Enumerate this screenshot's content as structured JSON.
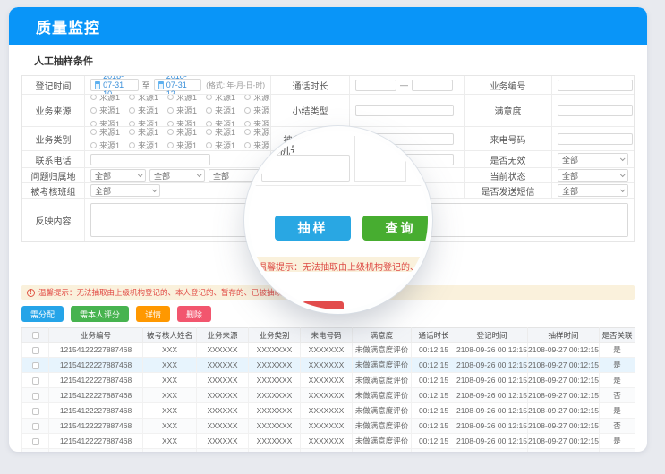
{
  "header": {
    "title": "质量监控"
  },
  "section": {
    "title": "人工抽样条件"
  },
  "form": {
    "registration_time": {
      "label": "登记时间",
      "from": "2018-07-31 10",
      "to": "2018-07-31 12",
      "separator": "至",
      "format_hint": "(格式: 年-月-日-时)"
    },
    "business_source": {
      "label": "业务来源",
      "option_label": "来源1",
      "rows": 3,
      "cols": 5
    },
    "business_category": {
      "label": "业务类别",
      "option_label": "来源1",
      "rows": 2,
      "cols": 5
    },
    "contact_phone": {
      "label": "联系电话"
    },
    "problem_region": {
      "label": "问题归属地",
      "selects": [
        "全部",
        "全部",
        "全部"
      ]
    },
    "assessed_team": {
      "label": "被考核班组",
      "select": "全部"
    },
    "feedback_content": {
      "label": "反映内容"
    },
    "call_duration": {
      "label": "通话时长",
      "separator": "—"
    },
    "summary_type": {
      "label": "小结类型"
    },
    "assessed_person": {
      "label": "被考核人姓名"
    },
    "switchboard_no": {
      "label": "总机号码"
    },
    "business_no": {
      "label": "业务编号"
    },
    "satisfaction": {
      "label": "满意度"
    },
    "caller_no": {
      "label": "来电号码"
    },
    "is_invalid": {
      "label": "是否无效",
      "select": "全部"
    },
    "current_status": {
      "label": "当前状态",
      "select": "全部"
    },
    "send_sms": {
      "label": "是否发送短信",
      "select": "全部"
    }
  },
  "lens": {
    "sample_label": "抽样",
    "query_label": "查询",
    "peek_label": "总机号码",
    "sample_color": "#29a7e3",
    "query_color": "#47ad30"
  },
  "warning": {
    "text": "温馨提示：无法抽取由上级机构登记的、本人登记的、暂存的、已被抽取未评分的业务记录，如果"
  },
  "toolbar": {
    "buttons": [
      {
        "name": "assign-button",
        "label": "需分配",
        "color": "#25a4e8"
      },
      {
        "name": "self-score-button",
        "label": "需本人评分",
        "color": "#47b34f"
      },
      {
        "name": "detail-button",
        "label": "详情",
        "color": "#ff9800"
      },
      {
        "name": "delete-button",
        "label": "删除",
        "color": "#f2566e"
      }
    ]
  },
  "table": {
    "headers": [
      "业务编号",
      "被考核人姓名",
      "业务来源",
      "业务类别",
      "来电号码",
      "满意度",
      "通话时长",
      "登记时间",
      "抽样时间",
      "是否关联"
    ],
    "highlighted_row_index": 1,
    "rows": [
      [
        "12154122227887468",
        "XXX",
        "XXXXXX",
        "XXXXXXX",
        "XXXXXXX",
        "未做满意度评价",
        "00:12:15",
        "2108-09-26 00:12:15",
        "2108-09-27 00:12:15",
        "是"
      ],
      [
        "12154122227887468",
        "XXX",
        "XXXXXX",
        "XXXXXXX",
        "XXXXXXX",
        "未做满意度评价",
        "00:12:15",
        "2108-09-26 00:12:15",
        "2108-09-27 00:12:15",
        "是"
      ],
      [
        "12154122227887468",
        "XXX",
        "XXXXXX",
        "XXXXXXX",
        "XXXXXXX",
        "未做满意度评价",
        "00:12:15",
        "2108-09-26 00:12:15",
        "2108-09-27 00:12:15",
        "是"
      ],
      [
        "12154122227887468",
        "XXX",
        "XXXXXX",
        "XXXXXXX",
        "XXXXXXX",
        "未做满意度评价",
        "00:12:15",
        "2108-09-26 00:12:15",
        "2108-09-27 00:12:15",
        "否"
      ],
      [
        "12154122227887468",
        "XXX",
        "XXXXXX",
        "XXXXXXX",
        "XXXXXXX",
        "未做满意度评价",
        "00:12:15",
        "2108-09-26 00:12:15",
        "2108-09-27 00:12:15",
        "是"
      ],
      [
        "12154122227887468",
        "XXX",
        "XXXXXX",
        "XXXXXXX",
        "XXXXXXX",
        "未做满意度评价",
        "00:12:15",
        "2108-09-26 00:12:15",
        "2108-09-27 00:12:15",
        "否"
      ],
      [
        "12154122227887468",
        "XXX",
        "XXXXXX",
        "XXXXXXX",
        "XXXXXXX",
        "未做满意度评价",
        "00:12:15",
        "2108-09-26 00:12:15",
        "2108-09-27 00:12:15",
        "是"
      ],
      [
        "12154122227887468",
        "XXX",
        "XXXXXX",
        "XXXXXXX",
        "XXXXXXX",
        "未做满意度评价",
        "00:12:15",
        "2108-09-26 00:12:15",
        "2108-09-27 00:12:15",
        "否"
      ]
    ]
  }
}
